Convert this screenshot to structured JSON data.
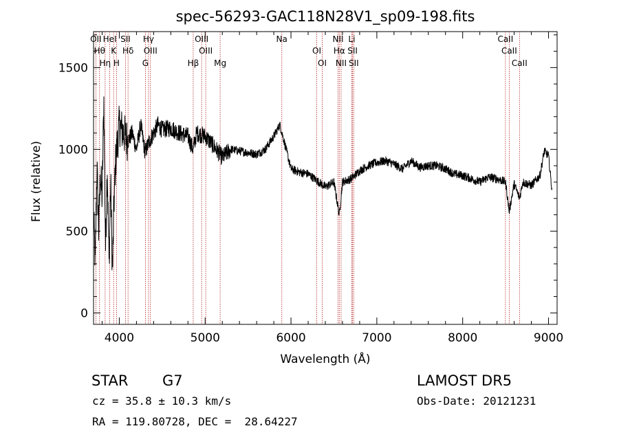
{
  "chart_data": {
    "type": "line",
    "title": "spec-56293-GAC118N28V1_sp09-198.fits",
    "xlabel": "Wavelength (Å)",
    "ylabel": "Flux (relative)",
    "xlim": [
      3700,
      9100
    ],
    "ylim": [
      -70,
      1720
    ],
    "xticks": [
      4000,
      5000,
      6000,
      7000,
      8000,
      9000
    ],
    "yticks": [
      0,
      500,
      1000,
      1500
    ],
    "grid": false,
    "series": [
      {
        "x": [
          3700,
          3720,
          3740,
          3760,
          3780,
          3800,
          3820,
          3840,
          3860,
          3880,
          3900,
          3920,
          3940,
          3960,
          3980,
          4000,
          4050,
          4100,
          4150,
          4200,
          4250,
          4300,
          4350,
          4400,
          4450,
          4500,
          4600,
          4700,
          4800,
          4860,
          4900,
          5000,
          5100,
          5200,
          5300,
          5400,
          5500,
          5600,
          5700,
          5800,
          5870,
          5920,
          6000,
          6100,
          6200,
          6300,
          6400,
          6500,
          6563,
          6600,
          6700,
          6800,
          6900,
          7000,
          7100,
          7200,
          7300,
          7400,
          7500,
          7600,
          7700,
          7800,
          7900,
          8000,
          8100,
          8200,
          8300,
          8400,
          8500,
          8542,
          8600,
          8662,
          8700,
          8800,
          8900,
          8950,
          9000,
          9040
        ],
        "y": [
          600,
          300,
          900,
          500,
          850,
          700,
          1300,
          400,
          900,
          300,
          800,
          250,
          700,
          950,
          1050,
          1150,
          1100,
          1050,
          1100,
          1000,
          1150,
          980,
          1050,
          1100,
          1150,
          1120,
          1130,
          1100,
          1080,
          1000,
          1100,
          1080,
          1020,
          950,
          1000,
          990,
          980,
          970,
          1000,
          1080,
          1150,
          1050,
          880,
          860,
          850,
          810,
          770,
          800,
          600,
          800,
          820,
          870,
          900,
          920,
          930,
          910,
          880,
          930,
          890,
          900,
          900,
          880,
          850,
          840,
          820,
          800,
          830,
          820,
          800,
          620,
          790,
          700,
          800,
          780,
          840,
          990,
          960,
          750
        ]
      }
    ],
    "lines": [
      {
        "w": 3727,
        "label": "OII"
      },
      {
        "w": 3770,
        "label": "Hθ"
      },
      {
        "w": 3835,
        "label": "Hη"
      },
      {
        "w": 3889,
        "label": "HeI"
      },
      {
        "w": 3934,
        "label": "K"
      },
      {
        "w": 3968,
        "label": "H"
      },
      {
        "w": 4072,
        "label": "SII"
      },
      {
        "w": 4102,
        "label": "Hδ"
      },
      {
        "w": 4304,
        "label": "G"
      },
      {
        "w": 4340,
        "label": "Hγ"
      },
      {
        "w": 4363,
        "label": "OIII"
      },
      {
        "w": 4861,
        "label": "Hβ"
      },
      {
        "w": 4959,
        "label": "OIII"
      },
      {
        "w": 5007,
        "label": "OIII"
      },
      {
        "w": 5175,
        "label": "Mg"
      },
      {
        "w": 5893,
        "label": "Na"
      },
      {
        "w": 6300,
        "label": "OI"
      },
      {
        "w": 6364,
        "label": "OI"
      },
      {
        "w": 6548,
        "label": "NII"
      },
      {
        "w": 6563,
        "label": "Hα"
      },
      {
        "w": 6584,
        "label": "NII"
      },
      {
        "w": 6708,
        "label": "Li"
      },
      {
        "w": 6717,
        "label": "SII"
      },
      {
        "w": 6731,
        "label": "SII"
      },
      {
        "w": 8498,
        "label": "CaII"
      },
      {
        "w": 8542,
        "label": "CaII"
      },
      {
        "w": 8662,
        "label": "CaII"
      }
    ]
  },
  "info": {
    "class": "STAR",
    "subclass": "G7",
    "survey": "LAMOST DR5",
    "cz": "cz = 35.8 ± 10.3 km/s",
    "obs_date": "Obs-Date: 20121231",
    "radec": "RA = 119.80728, DEC =  28.64227"
  }
}
